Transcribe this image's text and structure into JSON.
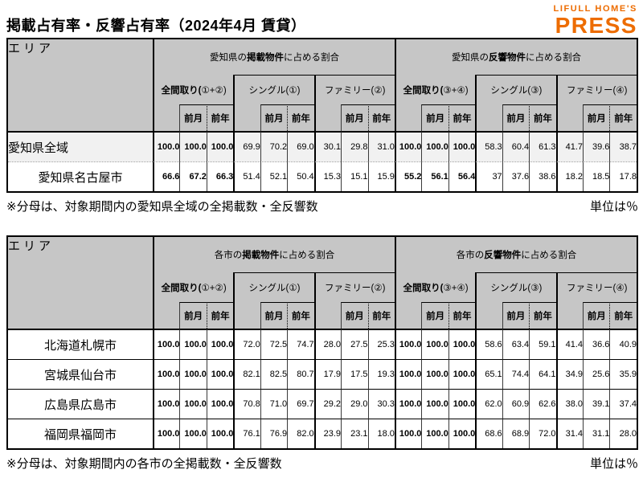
{
  "page": {
    "title": "掲載占有率・反響占有率（2024年4月 賃貸）",
    "unit_label": "単位は％"
  },
  "logo": {
    "line1": "LIFULL HOME'S",
    "line2": "PRESS"
  },
  "colors": {
    "logo_orange": "#ED6C00",
    "header_bg": "#C6C6C6",
    "shaded_row": "#F1F1F1"
  },
  "col_subheaders": {
    "current": "",
    "prev_month": "前月",
    "prev_year": "前年"
  },
  "tables": [
    {
      "area_header": "エリア",
      "groups": [
        {
          "title_prefix": "愛知県の",
          "title_bold": "掲載物件",
          "title_suffix": "に占める割合",
          "subgroups": [
            {
              "bold": "全間取り(",
              "normal": "①+②)"
            },
            {
              "bold": "",
              "normal": "シングル(①)"
            },
            {
              "bold": "",
              "normal": "ファミリー(②)"
            }
          ]
        },
        {
          "title_prefix": "愛知県の",
          "title_bold": "反響物件",
          "title_suffix": "に占める割合",
          "subgroups": [
            {
              "bold": "全間取り(",
              "normal": "③+④)"
            },
            {
              "bold": "",
              "normal": "シングル(③)"
            },
            {
              "bold": "",
              "normal": "ファミリー(④)"
            }
          ]
        }
      ],
      "rows": [
        {
          "label": "愛知県全域",
          "align": "left",
          "shaded": true,
          "values": [
            "100.0",
            "100.0",
            "100.0",
            "69.9",
            "70.2",
            "69.0",
            "30.1",
            "29.8",
            "31.0",
            "100.0",
            "100.0",
            "100.0",
            "58.3",
            "60.4",
            "61.3",
            "41.7",
            "39.6",
            "38.7"
          ]
        },
        {
          "label": "愛知県名古屋市",
          "align": "center",
          "shaded": false,
          "values": [
            "66.6",
            "67.2",
            "66.3",
            "51.4",
            "52.1",
            "50.4",
            "15.3",
            "15.1",
            "15.9",
            "55.2",
            "56.1",
            "56.4",
            "37",
            "37.6",
            "38.6",
            "18.2",
            "18.5",
            "17.8"
          ]
        }
      ],
      "footnote": "※分母は、対象期間内の愛知県全域の全掲載数・全反響数"
    },
    {
      "area_header": "エリア",
      "groups": [
        {
          "title_prefix": "各市の",
          "title_bold": "掲載物件",
          "title_suffix": "に占める割合",
          "subgroups": [
            {
              "bold": "全間取り(",
              "normal": "①+②)"
            },
            {
              "bold": "",
              "normal": "シングル(①)"
            },
            {
              "bold": "",
              "normal": "ファミリー(②)"
            }
          ]
        },
        {
          "title_prefix": "各市の",
          "title_bold": "反響物件",
          "title_suffix": "に占める割合",
          "subgroups": [
            {
              "bold": "全間取り(",
              "normal": "③+④)"
            },
            {
              "bold": "",
              "normal": "シングル(③)"
            },
            {
              "bold": "",
              "normal": "ファミリー(④)"
            }
          ]
        }
      ],
      "rows": [
        {
          "label": "北海道札幌市",
          "align": "center",
          "shaded": false,
          "values": [
            "100.0",
            "100.0",
            "100.0",
            "72.0",
            "72.5",
            "74.7",
            "28.0",
            "27.5",
            "25.3",
            "100.0",
            "100.0",
            "100.0",
            "58.6",
            "63.4",
            "59.1",
            "41.4",
            "36.6",
            "40.9"
          ]
        },
        {
          "label": "宮城県仙台市",
          "align": "center",
          "shaded": false,
          "values": [
            "100.0",
            "100.0",
            "100.0",
            "82.1",
            "82.5",
            "80.7",
            "17.9",
            "17.5",
            "19.3",
            "100.0",
            "100.0",
            "100.0",
            "65.1",
            "74.4",
            "64.1",
            "34.9",
            "25.6",
            "35.9"
          ]
        },
        {
          "label": "広島県広島市",
          "align": "center",
          "shaded": false,
          "values": [
            "100.0",
            "100.0",
            "100.0",
            "70.8",
            "71.0",
            "69.7",
            "29.2",
            "29.0",
            "30.3",
            "100.0",
            "100.0",
            "100.0",
            "62.0",
            "60.9",
            "62.6",
            "38.0",
            "39.1",
            "37.4"
          ]
        },
        {
          "label": "福岡県福岡市",
          "align": "center",
          "shaded": false,
          "values": [
            "100.0",
            "100.0",
            "100.0",
            "76.1",
            "76.9",
            "82.0",
            "23.9",
            "23.1",
            "18.0",
            "100.0",
            "100.0",
            "100.0",
            "68.6",
            "68.9",
            "72.0",
            "31.4",
            "31.1",
            "28.0"
          ]
        }
      ],
      "footnote": "※分母は、対象期間内の各市の全掲載数・全反響数"
    }
  ]
}
